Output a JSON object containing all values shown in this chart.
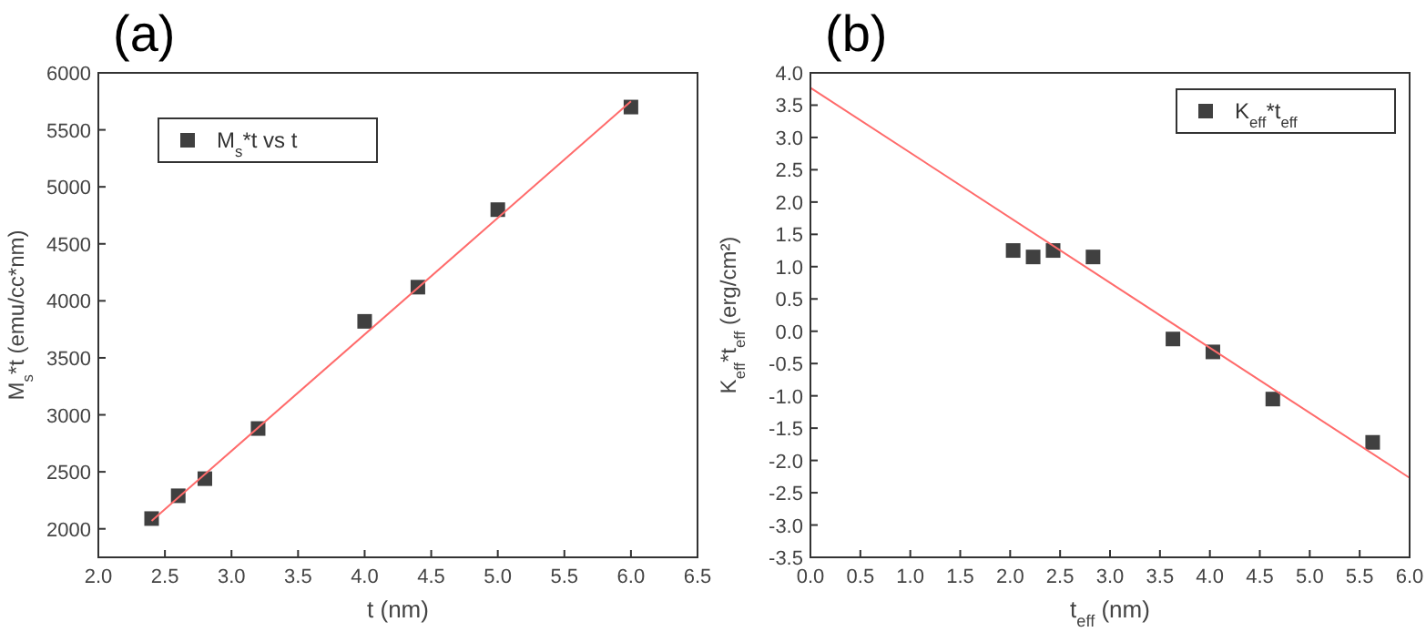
{
  "chart_data": [
    {
      "type": "scatter",
      "title": "(a)",
      "xlabel": "t (nm)",
      "ylabel": "M$_{s}$*t (emu/cc*nm)",
      "xlim": [
        2.0,
        6.5
      ],
      "xticks": [
        {
          "value": 2,
          "label": "2.0"
        },
        {
          "value": 2.5,
          "label": "2.5"
        },
        {
          "value": 3,
          "label": "3.0"
        },
        {
          "value": 3.5,
          "label": "3.5"
        },
        {
          "value": 4,
          "label": "4.0"
        },
        {
          "value": 4.5,
          "label": "4.5"
        },
        {
          "value": 5,
          "label": "5.0"
        },
        {
          "value": 5.5,
          "label": "5.5"
        },
        {
          "value": 6,
          "label": "6.0"
        },
        {
          "value": 6.5,
          "label": "6.5"
        }
      ],
      "ylim": [
        1750,
        6000
      ],
      "yticks": [
        2000,
        2500,
        3000,
        3500,
        4000,
        4500,
        5000,
        5500,
        6000
      ],
      "grid": false,
      "legend": "top left",
      "series": [
        {
          "name": "M$_{s}$*t vs t",
          "type": "scatter",
          "marker": "square",
          "color": "#404040",
          "x": [
            2.4,
            2.6,
            2.8,
            3.2,
            4.0,
            4.4,
            5.0,
            6.0
          ],
          "values": [
            2090,
            2290,
            2440,
            2880,
            3820,
            4120,
            4800,
            5700
          ]
        },
        {
          "type": "line",
          "marker": "none",
          "color": "#ff6b6b",
          "x": [
            2.4,
            6.0
          ],
          "values": [
            2070,
            5750
          ]
        }
      ]
    },
    {
      "type": "scatter",
      "title": "(b)",
      "xlabel": "t$_{eff}$ (nm)",
      "ylabel": "K$_{eff}$*t$_{eff}$ (erg/cm²)",
      "xlim": [
        0,
        6
      ],
      "xticks": [
        {
          "value": 0,
          "label": "0.0"
        },
        {
          "value": 0.5,
          "label": "0.5"
        },
        {
          "value": 1,
          "label": "1.0"
        },
        {
          "value": 1.5,
          "label": "1.5"
        },
        {
          "value": 2,
          "label": "2.0"
        },
        {
          "value": 2.5,
          "label": "2.5"
        },
        {
          "value": 3,
          "label": "3.0"
        },
        {
          "value": 3.5,
          "label": "3.5"
        },
        {
          "value": 4,
          "label": "4.0"
        },
        {
          "value": 4.5,
          "label": "4.5"
        },
        {
          "value": 5,
          "label": "5.0"
        },
        {
          "value": 5.5,
          "label": "5.5"
        },
        {
          "value": 6,
          "label": "6.0"
        }
      ],
      "ylim": [
        -3.5,
        4
      ],
      "yticks": [
        {
          "value": -3.5,
          "label": "-3.5"
        },
        {
          "value": -3,
          "label": "-3.0"
        },
        {
          "value": -2.5,
          "label": "-2.5"
        },
        {
          "value": -2,
          "label": "-2.0"
        },
        {
          "value": -1.5,
          "label": "-1.5"
        },
        {
          "value": -1,
          "label": "-1.0"
        },
        {
          "value": -0.5,
          "label": "-0.5"
        },
        {
          "value": 0,
          "label": "0.0"
        },
        {
          "value": 0.5,
          "label": "0.5"
        },
        {
          "value": 1,
          "label": "1.0"
        },
        {
          "value": 1.5,
          "label": "1.5"
        },
        {
          "value": 2,
          "label": "2.0"
        },
        {
          "value": 2.5,
          "label": "2.5"
        },
        {
          "value": 3,
          "label": "3.0"
        },
        {
          "value": 3.5,
          "label": "3.5"
        },
        {
          "value": 4,
          "label": "4.0"
        }
      ],
      "grid": false,
      "legend": "top right",
      "series": [
        {
          "name": "K$_{eff}$*t$_{eff}$",
          "type": "scatter",
          "marker": "square",
          "color": "#404040",
          "x": [
            2.03,
            2.23,
            2.43,
            2.83,
            3.63,
            4.03,
            4.63,
            5.63
          ],
          "values": [
            1.25,
            1.15,
            1.25,
            1.15,
            -0.12,
            -0.32,
            -1.05,
            -1.72
          ]
        },
        {
          "type": "line",
          "marker": "none",
          "color": "#ff6b6b",
          "x": [
            0,
            6
          ],
          "values": [
            3.77,
            -2.27
          ]
        }
      ]
    }
  ]
}
